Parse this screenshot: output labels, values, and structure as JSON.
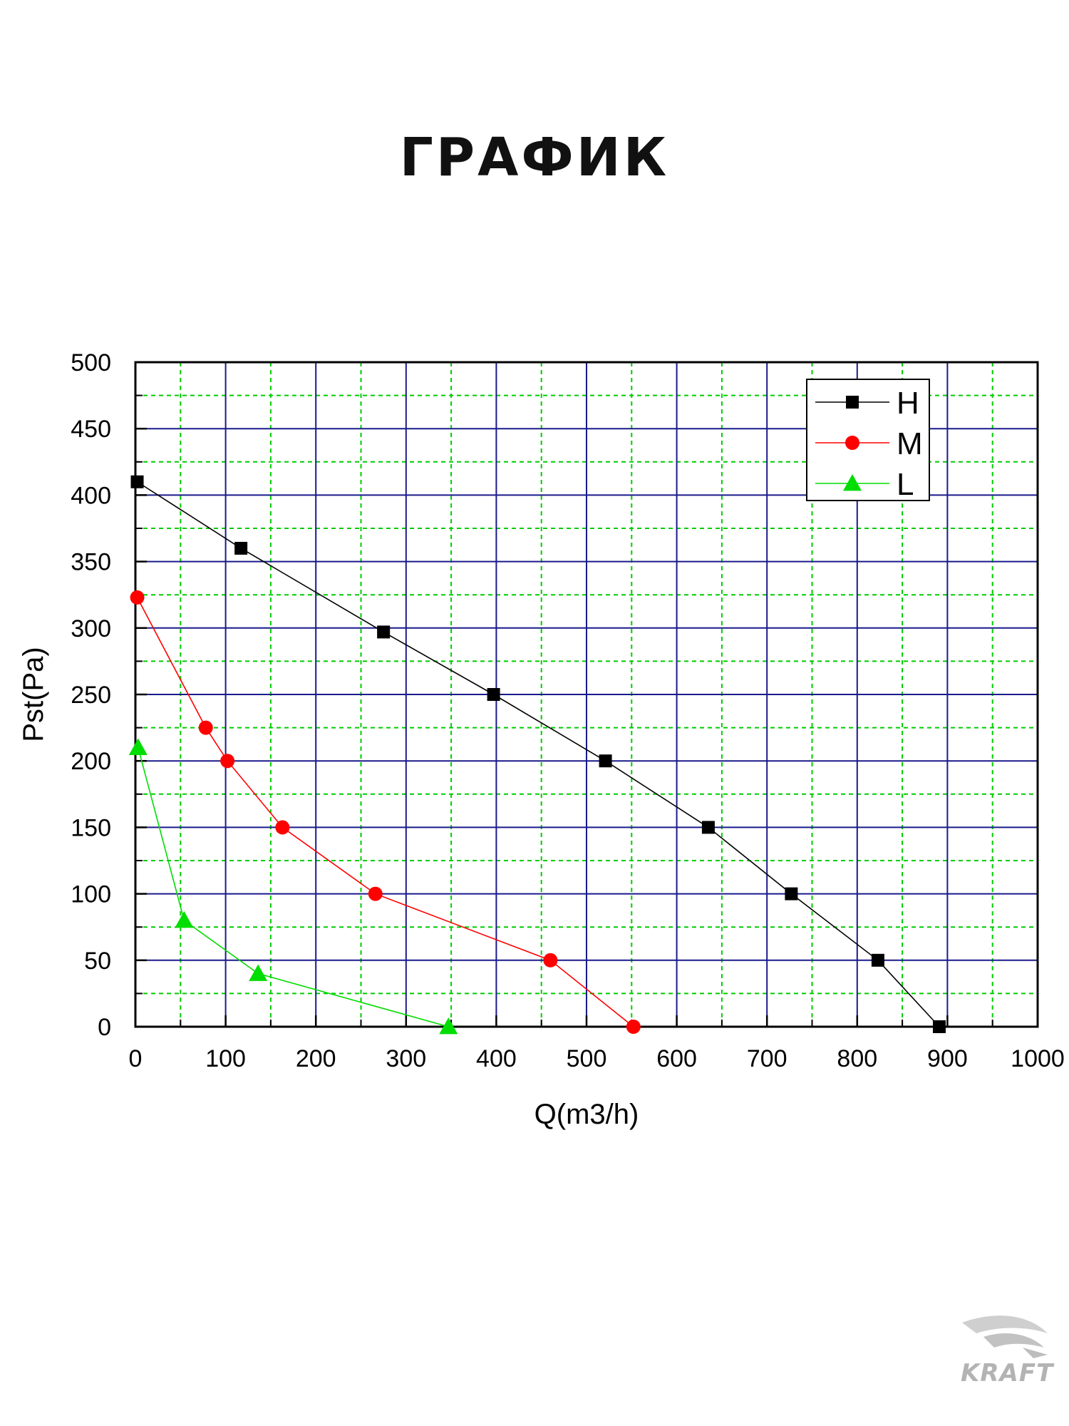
{
  "page": {
    "title": "ГРАФИК",
    "logo_text": "KRAFT"
  },
  "chart_data": {
    "type": "line",
    "title": "",
    "xlabel": "Q(m3/h)",
    "ylabel": "Pst(Pa)",
    "xlim": [
      0,
      1000
    ],
    "ylim": [
      0,
      500
    ],
    "xticks": [
      0,
      100,
      200,
      300,
      400,
      500,
      600,
      700,
      800,
      900,
      1000
    ],
    "yticks": [
      0,
      50,
      100,
      150,
      200,
      250,
      300,
      350,
      400,
      450,
      500
    ],
    "grid": {
      "major": true,
      "minor": true,
      "major_color": "#1a1a8c",
      "minor_color": "#00cc00"
    },
    "legend_position": "top-right",
    "series": [
      {
        "name": "H",
        "color": "#000000",
        "marker": "square",
        "x": [
          2,
          117,
          275,
          397,
          521,
          635,
          727,
          823,
          891
        ],
        "y": [
          410,
          360,
          297,
          250,
          200,
          150,
          100,
          50,
          0
        ]
      },
      {
        "name": "M",
        "color": "#ff0000",
        "marker": "circle",
        "x": [
          2,
          78,
          102,
          163,
          266,
          460,
          552
        ],
        "y": [
          323,
          225,
          200,
          150,
          100,
          50,
          0
        ]
      },
      {
        "name": "L",
        "color": "#00dd00",
        "marker": "triangle",
        "x": [
          3,
          54,
          136,
          347
        ],
        "y": [
          210,
          80,
          40,
          0
        ]
      }
    ]
  }
}
